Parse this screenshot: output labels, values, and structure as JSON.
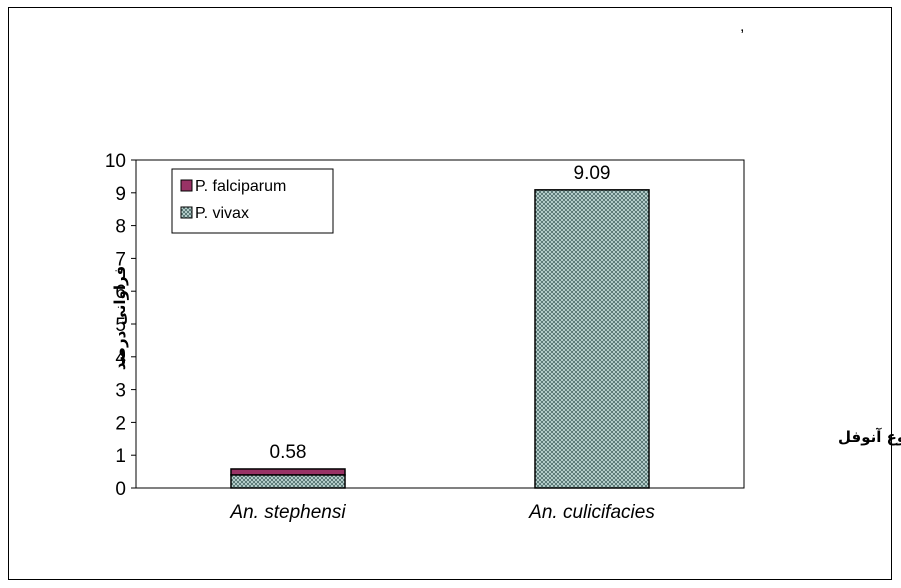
{
  "annotation": ",",
  "chart_data": {
    "type": "bar",
    "stacked": true,
    "categories": [
      "An.  stephensi",
      "An.  culicifacies"
    ],
    "series": [
      {
        "name": "P.  vivax",
        "values": [
          0.4,
          9.09
        ],
        "color": "#a9c8c4",
        "pattern": "crosshatch"
      },
      {
        "name": "P.  falciparum",
        "values": [
          0.18,
          0
        ],
        "color": "#993366",
        "pattern": "solid"
      }
    ],
    "totals": [
      "0.58",
      "9.09"
    ],
    "ylim": [
      0,
      10
    ],
    "yticks": [
      0,
      1,
      2,
      3,
      4,
      5,
      6,
      7,
      8,
      9,
      10
    ],
    "ylabel": "فراوانی درصد",
    "xlabel": "نوع آنوفل",
    "legend": "top-left",
    "grid": false
  }
}
